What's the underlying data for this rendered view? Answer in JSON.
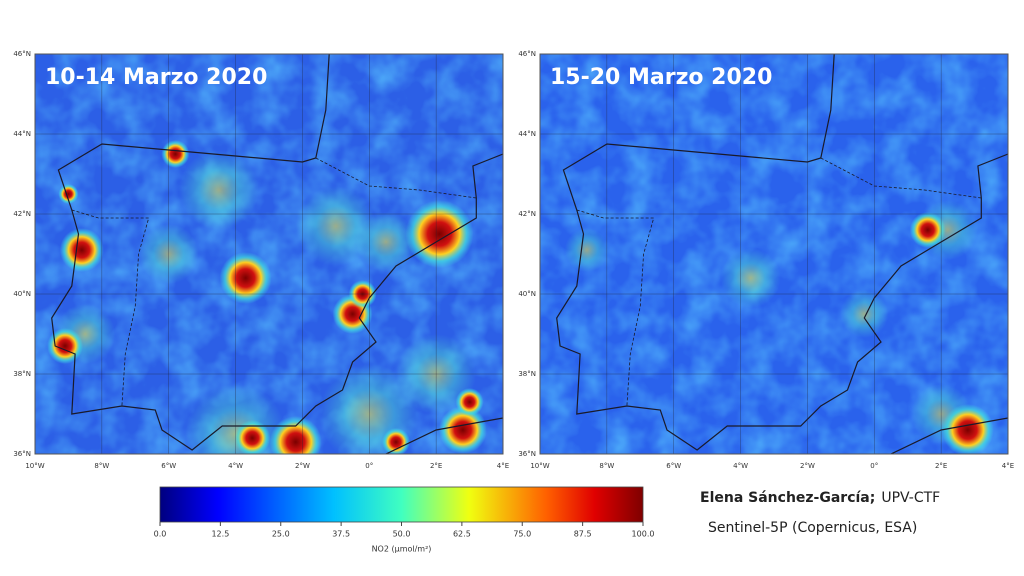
{
  "panels": [
    {
      "title": "10-14 Marzo 2020"
    },
    {
      "title": "15-20 Marzo 2020"
    }
  ],
  "lat_labels": [
    "46°N",
    "44°N",
    "42°N",
    "40°N",
    "38°N",
    "36°N"
  ],
  "lon_labels": [
    "10°W",
    "8°W",
    "6°W",
    "4°W",
    "2°W",
    "0°",
    "2°E",
    "4°E"
  ],
  "colorbar": {
    "lim": [
      0,
      100
    ],
    "ticks": [
      {
        "value": 0,
        "label": "0.0"
      },
      {
        "value": 12.5,
        "label": "12.5"
      },
      {
        "value": 25,
        "label": "25.0"
      },
      {
        "value": 37.5,
        "label": "37.5"
      },
      {
        "value": 50,
        "label": "50.0"
      },
      {
        "value": 62.5,
        "label": "62.5"
      },
      {
        "value": 75,
        "label": "75.0"
      },
      {
        "value": 87.5,
        "label": "87.5"
      },
      {
        "value": 100,
        "label": "100.0"
      }
    ],
    "label": "NO2 (µmol/m²)"
  },
  "credits": {
    "author": "Elena Sánchez-García;",
    "affiliation": "UPV-CTF",
    "source": "Sentinel-5P (Copernicus, ESA)"
  }
}
